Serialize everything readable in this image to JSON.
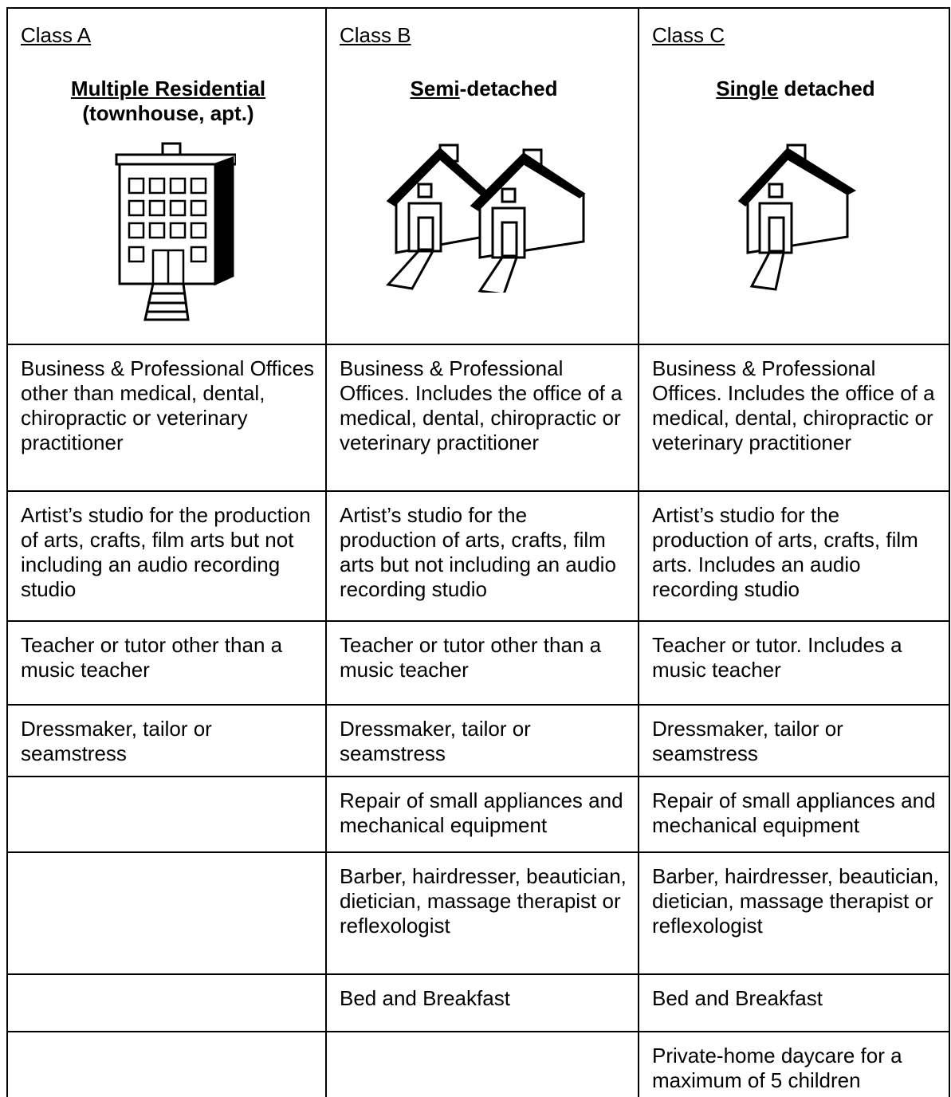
{
  "header": {
    "columns": [
      {
        "class_label": "Class A",
        "title_underlined": "Multiple Residential",
        "title_rest": "(townhouse, apt.)"
      },
      {
        "class_label": "Class B",
        "title_underlined": "Semi",
        "title_rest": "-detached"
      },
      {
        "class_label": "Class C",
        "title_underlined": "Single",
        "title_rest": "detached"
      }
    ]
  },
  "table": {
    "rows": [
      [
        "Business & Professional Offices other than medical, dental, chiropractic or veterinary practitioner",
        "Business & Professional Offices.  Includes the office of a medical, dental, chiropractic or veterinary practitioner",
        "Business & Professional Offices.  Includes the office of a medical, dental, chiropractic or veterinary practitioner"
      ],
      [
        "Artist’s studio for the production of arts, crafts, film arts but not including an audio recording studio",
        "Artist’s studio for the production of arts, crafts, film arts but not including an audio recording studio",
        "Artist’s studio for the production of arts, crafts, film arts. Includes an audio recording studio"
      ],
      [
        "Teacher or tutor other than a music teacher",
        "Teacher or tutor other than a music teacher",
        "Teacher or tutor. Includes a music teacher"
      ],
      [
        "Dressmaker, tailor or seamstress",
        "Dressmaker, tailor or seamstress",
        "Dressmaker, tailor or seamstress"
      ],
      [
        null,
        "Repair of small appliances and mechanical equipment",
        "Repair of small appliances and mechanical equipment"
      ],
      [
        null,
        "Barber, hairdresser, beautician, dietician, massage therapist or reflexologist",
        "Barber, hairdresser, beautician, dietician, massage therapist or reflexologist"
      ],
      [
        null,
        "Bed and Breakfast",
        "Bed and Breakfast"
      ],
      [
        null,
        null,
        "Private-home daycare for a maximum of 5 children"
      ]
    ]
  }
}
